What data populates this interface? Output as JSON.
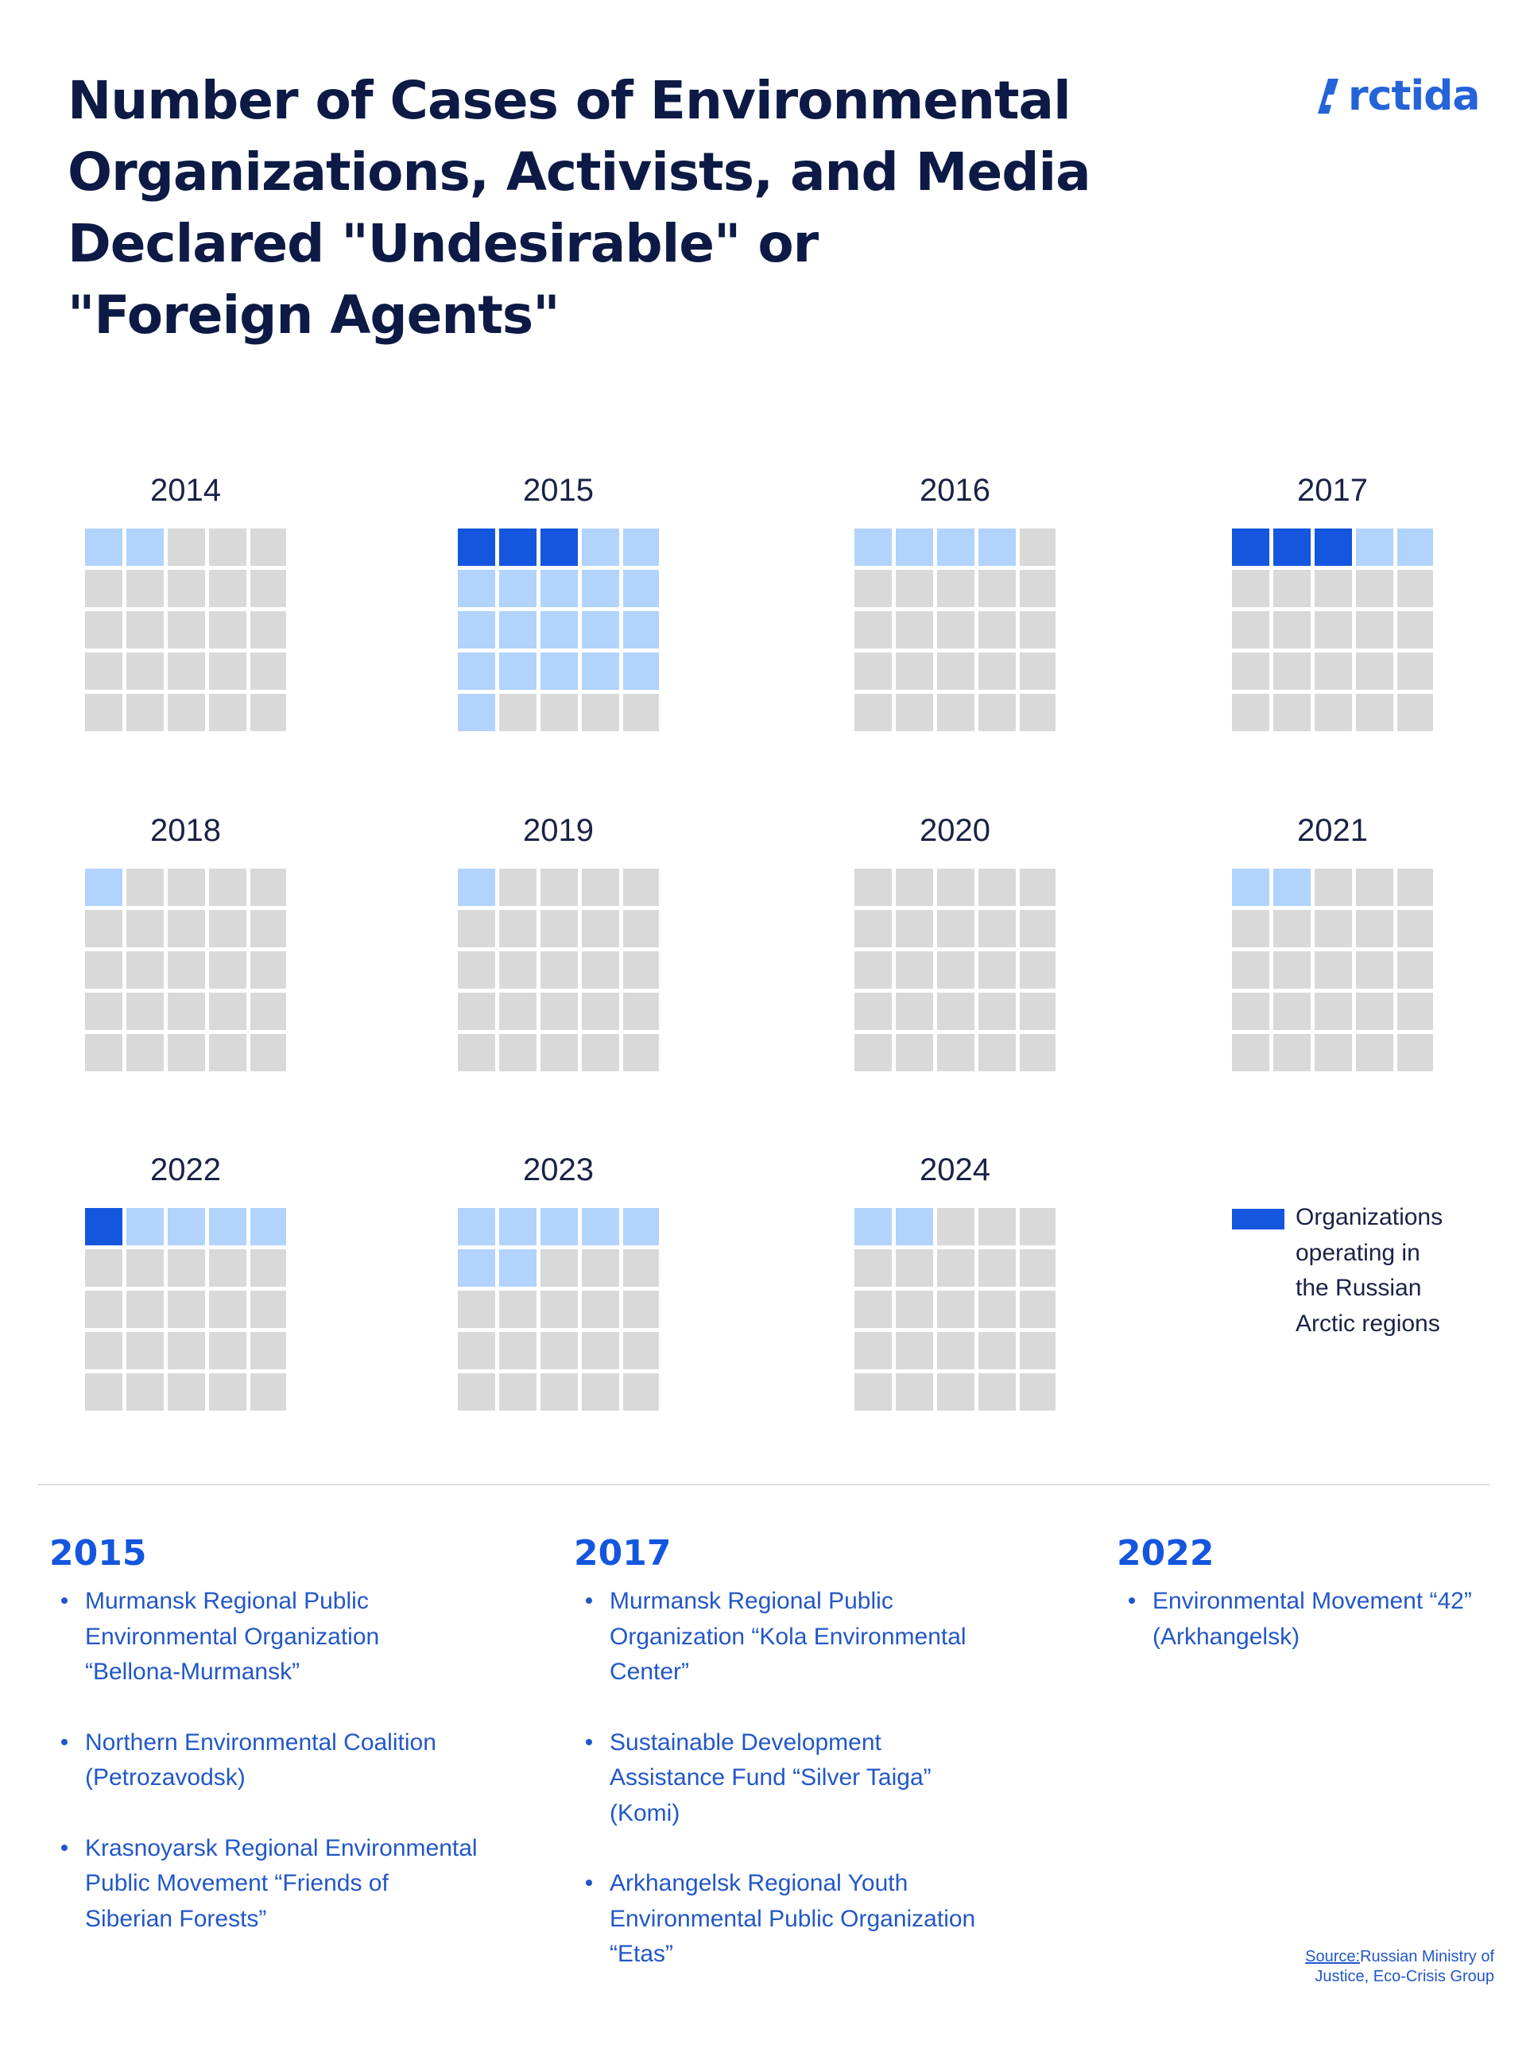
{
  "title_lines": [
    "Number of Cases of Environmental",
    "Organizations, Activists, and Media",
    "Declared \"Undesirable\" or",
    "\"Foreign Agents\""
  ],
  "logo_text": "rctida",
  "colors": {
    "arctic": "#1456de",
    "other": "#b1d3fc",
    "empty": "#d9d9d9",
    "brand": "#2563d9",
    "title": "#0c1a45"
  },
  "chart_data": {
    "type": "waffle",
    "grid": "5x5",
    "categories": [
      "2014",
      "2015",
      "2016",
      "2017",
      "2018",
      "2019",
      "2020",
      "2021",
      "2022",
      "2023",
      "2024"
    ],
    "series": [
      {
        "name": "Organizations operating in the Russian Arctic regions",
        "values": [
          0,
          3,
          0,
          3,
          0,
          0,
          0,
          0,
          1,
          0,
          0
        ]
      },
      {
        "values": [
          2,
          18,
          4,
          2,
          1,
          1,
          0,
          2,
          4,
          7,
          2
        ]
      }
    ],
    "totals": [
      2,
      21,
      4,
      5,
      1,
      1,
      0,
      2,
      5,
      7,
      2
    ]
  },
  "legend": {
    "label_lines": [
      "Organizations",
      "operating in",
      "the Russian",
      "Arctic regions"
    ]
  },
  "details": [
    {
      "year": "2015",
      "items": [
        [
          "Murmansk Regional Public",
          "Environmental Organization",
          "“Bellona-Murmansk”"
        ],
        [
          "Northern Environmental Coalition",
          "(Petrozavodsk)"
        ],
        [
          "Krasnoyarsk Regional Environmental",
          "Public Movement “Friends of",
          "Siberian Forests”"
        ]
      ]
    },
    {
      "year": "2017",
      "items": [
        [
          "Murmansk Regional Public",
          "Organization “Kola Environmental",
          "Center”"
        ],
        [
          "Sustainable Development",
          "Assistance Fund “Silver Taiga”",
          "(Komi)"
        ],
        [
          "Arkhangelsk Regional Youth",
          "Environmental Public Organization",
          "“Etas”"
        ]
      ]
    },
    {
      "year": "2022",
      "items": [
        [
          "Environmental Movement “42”",
          "(Arkhangelsk)"
        ]
      ]
    }
  ],
  "source": {
    "label": "Source:",
    "lines": [
      "Russian Ministry of",
      "Justice, Eco-Crisis Group"
    ]
  }
}
